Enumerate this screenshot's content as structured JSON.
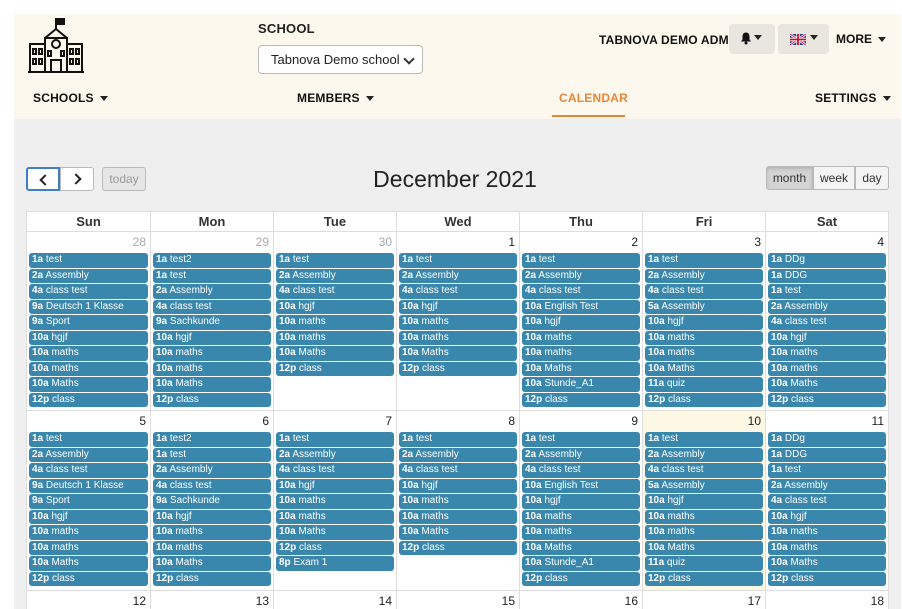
{
  "header": {
    "school_label": "SCHOOL",
    "school_select_value": "Tabnova Demo school",
    "admin_name": "TABNOVA DEMO ADMIN",
    "more_label": "MORE",
    "nav": {
      "schools": "SCHOOLS",
      "members": "MEMBERS",
      "calendar": "CALENDAR",
      "settings": "SETTINGS"
    },
    "accent_color": "#e8853a"
  },
  "toolbar": {
    "today_label": "today",
    "title": "December 2021",
    "views": [
      "month",
      "week",
      "day"
    ],
    "active_view": "month"
  },
  "calendar": {
    "days_of_week": [
      "Sun",
      "Mon",
      "Tue",
      "Wed",
      "Thu",
      "Fri",
      "Sat"
    ],
    "event_color": "#3a87ad",
    "today_highlight": "#fcf8e3",
    "weeks": [
      [
        {
          "day": "28",
          "other": true,
          "events": [
            [
              "1a",
              "test"
            ],
            [
              "2a",
              "Assembly"
            ],
            [
              "4a",
              "class test"
            ],
            [
              "9a",
              "Deutsch 1 Klasse"
            ],
            [
              "9a",
              "Sport"
            ],
            [
              "10a",
              "hgjf"
            ],
            [
              "10a",
              "maths"
            ],
            [
              "10a",
              "maths"
            ],
            [
              "10a",
              "Maths"
            ],
            [
              "12p",
              "class"
            ]
          ]
        },
        {
          "day": "29",
          "other": true,
          "events": [
            [
              "1a",
              "test2"
            ],
            [
              "1a",
              "test"
            ],
            [
              "2a",
              "Assembly"
            ],
            [
              "4a",
              "class test"
            ],
            [
              "9a",
              "Sachkunde"
            ],
            [
              "10a",
              "hgjf"
            ],
            [
              "10a",
              "maths"
            ],
            [
              "10a",
              "maths"
            ],
            [
              "10a",
              "Maths"
            ],
            [
              "12p",
              "class"
            ]
          ]
        },
        {
          "day": "30",
          "other": true,
          "events": [
            [
              "1a",
              "test"
            ],
            [
              "2a",
              "Assembly"
            ],
            [
              "4a",
              "class test"
            ],
            [
              "10a",
              "hgjf"
            ],
            [
              "10a",
              "maths"
            ],
            [
              "10a",
              "maths"
            ],
            [
              "10a",
              "Maths"
            ],
            [
              "12p",
              "class"
            ]
          ]
        },
        {
          "day": "1",
          "events": [
            [
              "1a",
              "test"
            ],
            [
              "2a",
              "Assembly"
            ],
            [
              "4a",
              "class test"
            ],
            [
              "10a",
              "hgjf"
            ],
            [
              "10a",
              "maths"
            ],
            [
              "10a",
              "maths"
            ],
            [
              "10a",
              "Maths"
            ],
            [
              "12p",
              "class"
            ]
          ]
        },
        {
          "day": "2",
          "events": [
            [
              "1a",
              "test"
            ],
            [
              "2a",
              "Assembly"
            ],
            [
              "4a",
              "class test"
            ],
            [
              "10a",
              "English Test"
            ],
            [
              "10a",
              "hgjf"
            ],
            [
              "10a",
              "maths"
            ],
            [
              "10a",
              "maths"
            ],
            [
              "10a",
              "Maths"
            ],
            [
              "10a",
              "Stunde_A1"
            ],
            [
              "12p",
              "class"
            ]
          ]
        },
        {
          "day": "3",
          "events": [
            [
              "1a",
              "test"
            ],
            [
              "2a",
              "Assembly"
            ],
            [
              "4a",
              "class test"
            ],
            [
              "5a",
              "Assembly"
            ],
            [
              "10a",
              "hgjf"
            ],
            [
              "10a",
              "maths"
            ],
            [
              "10a",
              "maths"
            ],
            [
              "10a",
              "Maths"
            ],
            [
              "11a",
              "quiz"
            ],
            [
              "12p",
              "class"
            ]
          ]
        },
        {
          "day": "4",
          "events": [
            [
              "1a",
              "DDg"
            ],
            [
              "1a",
              "DDG"
            ],
            [
              "1a",
              "test"
            ],
            [
              "2a",
              "Assembly"
            ],
            [
              "4a",
              "class test"
            ],
            [
              "10a",
              "hgjf"
            ],
            [
              "10a",
              "maths"
            ],
            [
              "10a",
              "maths"
            ],
            [
              "10a",
              "Maths"
            ],
            [
              "12p",
              "class"
            ]
          ]
        }
      ],
      [
        {
          "day": "5",
          "events": [
            [
              "1a",
              "test"
            ],
            [
              "2a",
              "Assembly"
            ],
            [
              "4a",
              "class test"
            ],
            [
              "9a",
              "Deutsch 1 Klasse"
            ],
            [
              "9a",
              "Sport"
            ],
            [
              "10a",
              "hgjf"
            ],
            [
              "10a",
              "maths"
            ],
            [
              "10a",
              "maths"
            ],
            [
              "10a",
              "Maths"
            ],
            [
              "12p",
              "class"
            ]
          ]
        },
        {
          "day": "6",
          "events": [
            [
              "1a",
              "test2"
            ],
            [
              "1a",
              "test"
            ],
            [
              "2a",
              "Assembly"
            ],
            [
              "4a",
              "class test"
            ],
            [
              "9a",
              "Sachkunde"
            ],
            [
              "10a",
              "hgjf"
            ],
            [
              "10a",
              "maths"
            ],
            [
              "10a",
              "maths"
            ],
            [
              "10a",
              "Maths"
            ],
            [
              "12p",
              "class"
            ]
          ]
        },
        {
          "day": "7",
          "events": [
            [
              "1a",
              "test"
            ],
            [
              "2a",
              "Assembly"
            ],
            [
              "4a",
              "class test"
            ],
            [
              "10a",
              "hgjf"
            ],
            [
              "10a",
              "maths"
            ],
            [
              "10a",
              "maths"
            ],
            [
              "10a",
              "Maths"
            ],
            [
              "12p",
              "class"
            ],
            [
              "8p",
              "Exam 1"
            ]
          ]
        },
        {
          "day": "8",
          "events": [
            [
              "1a",
              "test"
            ],
            [
              "2a",
              "Assembly"
            ],
            [
              "4a",
              "class test"
            ],
            [
              "10a",
              "hgjf"
            ],
            [
              "10a",
              "maths"
            ],
            [
              "10a",
              "maths"
            ],
            [
              "10a",
              "Maths"
            ],
            [
              "12p",
              "class"
            ]
          ]
        },
        {
          "day": "9",
          "events": [
            [
              "1a",
              "test"
            ],
            [
              "2a",
              "Assembly"
            ],
            [
              "4a",
              "class test"
            ],
            [
              "10a",
              "English Test"
            ],
            [
              "10a",
              "hgjf"
            ],
            [
              "10a",
              "maths"
            ],
            [
              "10a",
              "maths"
            ],
            [
              "10a",
              "Maths"
            ],
            [
              "10a",
              "Stunde_A1"
            ],
            [
              "12p",
              "class"
            ]
          ]
        },
        {
          "day": "10",
          "today": true,
          "events": [
            [
              "1a",
              "test"
            ],
            [
              "2a",
              "Assembly"
            ],
            [
              "4a",
              "class test"
            ],
            [
              "5a",
              "Assembly"
            ],
            [
              "10a",
              "hgjf"
            ],
            [
              "10a",
              "maths"
            ],
            [
              "10a",
              "maths"
            ],
            [
              "10a",
              "Maths"
            ],
            [
              "11a",
              "quiz"
            ],
            [
              "12p",
              "class"
            ]
          ]
        },
        {
          "day": "11",
          "events": [
            [
              "1a",
              "DDg"
            ],
            [
              "1a",
              "DDG"
            ],
            [
              "1a",
              "test"
            ],
            [
              "2a",
              "Assembly"
            ],
            [
              "4a",
              "class test"
            ],
            [
              "10a",
              "hgjf"
            ],
            [
              "10a",
              "maths"
            ],
            [
              "10a",
              "maths"
            ],
            [
              "10a",
              "Maths"
            ],
            [
              "12p",
              "class"
            ]
          ]
        }
      ],
      [
        {
          "day": "12",
          "events": []
        },
        {
          "day": "13",
          "events": []
        },
        {
          "day": "14",
          "events": []
        },
        {
          "day": "15",
          "events": []
        },
        {
          "day": "16",
          "events": []
        },
        {
          "day": "17",
          "events": []
        },
        {
          "day": "18",
          "events": []
        }
      ]
    ]
  }
}
